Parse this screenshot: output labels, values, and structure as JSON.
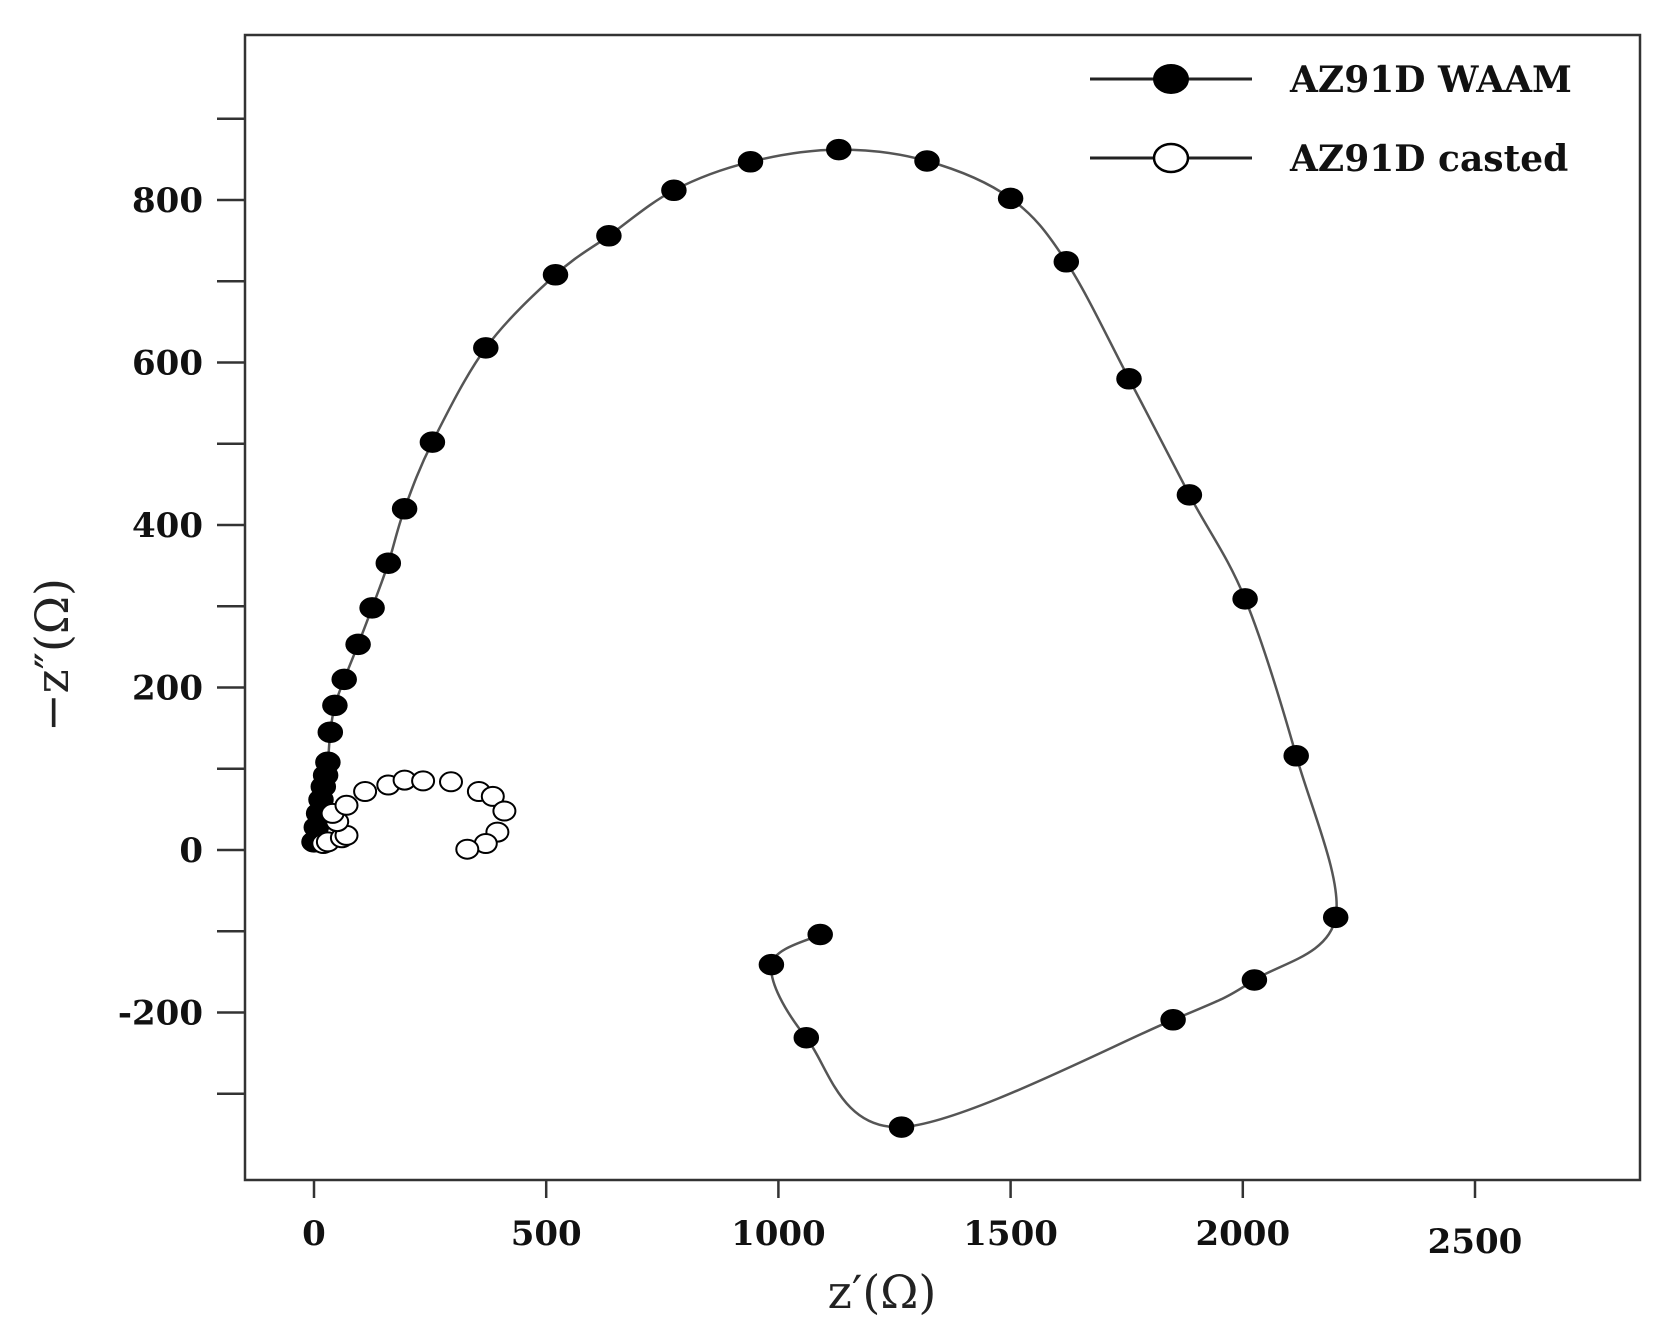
{
  "chart_data": {
    "type": "scatter",
    "title": "",
    "xlabel": "z′(Ω)",
    "ylabel": "−z″(Ω)",
    "xlim": [
      -150,
      2850
    ],
    "ylim": [
      -400,
      1000
    ],
    "x_ticks": [
      0,
      500,
      1000,
      1500,
      2000,
      2500
    ],
    "x_tick_labels": [
      "0",
      "500",
      "1000",
      "1500",
      "2000",
      "2500"
    ],
    "y_ticks": [
      -300,
      -200,
      -100,
      0,
      100,
      200,
      300,
      400,
      500,
      600,
      700,
      800,
      900
    ],
    "y_tick_labels": [
      "",
      "-200",
      "",
      "0",
      "",
      "200",
      "",
      "400",
      "",
      "600",
      "",
      "800",
      ""
    ],
    "grid": false,
    "legend_position": "top-right",
    "series": [
      {
        "name": "AZ91D WAAM",
        "marker": "filled-circle",
        "color": "#000000",
        "line": true,
        "x": [
          0,
          5,
          10,
          15,
          20,
          25,
          30,
          35,
          45,
          65,
          95,
          125,
          160,
          195,
          255,
          370,
          520,
          635,
          775,
          940,
          1130,
          1320,
          1500,
          1620,
          1755,
          1885,
          2005,
          2115,
          2200,
          2025,
          1850,
          1265,
          1060,
          985,
          1090
        ],
        "y": [
          10,
          28,
          45,
          62,
          78,
          92,
          108,
          145,
          178,
          210,
          253,
          298,
          353,
          420,
          502,
          618,
          708,
          756,
          812,
          847,
          862,
          848,
          802,
          724,
          580,
          437,
          309,
          116,
          -83,
          -160,
          -209,
          -341,
          -231,
          -141,
          -104
        ]
      },
      {
        "name": "AZ91D casted",
        "marker": "open-circle",
        "color": "#000000",
        "line": false,
        "x": [
          20,
          30,
          60,
          70,
          50,
          40,
          70,
          110,
          160,
          195,
          235,
          295,
          355,
          385,
          410,
          395,
          370,
          330
        ],
        "y": [
          8,
          10,
          15,
          18,
          35,
          45,
          55,
          72,
          80,
          86,
          85,
          84,
          72,
          66,
          48,
          22,
          8,
          1
        ]
      }
    ]
  }
}
